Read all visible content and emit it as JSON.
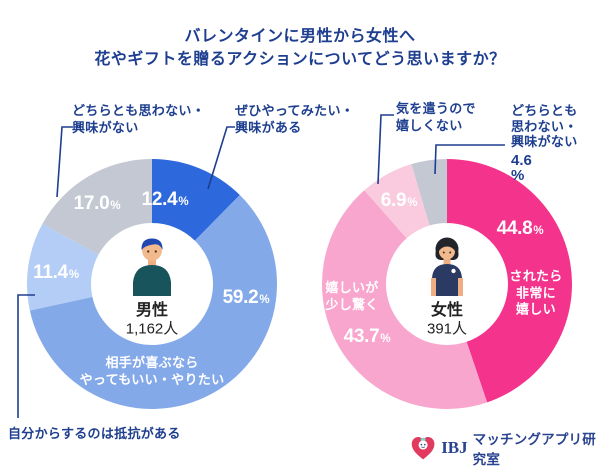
{
  "title": {
    "line1": "バレンタインに男性から女性へ",
    "line2": "花やギフトを贈るアクションについてどう思いますか？"
  },
  "percent_sign": "%",
  "chart_data": [
    {
      "type": "donut",
      "question": "バレンタインに男性から女性へ花やギフトを贈るアクションについてどう思いますか？",
      "group": "男性",
      "sample_size": "1,162人",
      "units": "%",
      "start_angle_deg": 0,
      "direction": "clockwise",
      "segments": [
        {
          "label": "ぜひやってみたい・興味がある",
          "value": 12.4,
          "pct": "12.4",
          "color": "#2D68DC"
        },
        {
          "label": "相手が喜ぶならやってもいい・やりたい",
          "value": 59.2,
          "pct": "59.2",
          "color": "#84A9E9"
        },
        {
          "label": "自分からするのは抵抗がある",
          "value": 11.4,
          "pct": "11.4",
          "color": "#B3CDF6"
        },
        {
          "label": "どちらとも思わない・興味がない",
          "value": 17.0,
          "pct": "17.0",
          "color": "#C3C8D3"
        }
      ]
    },
    {
      "type": "donut",
      "question": "バレンタインに男性から女性へ花やギフトを贈るアクションについてどう思いますか？",
      "group": "女性",
      "sample_size": "391人",
      "units": "%",
      "start_angle_deg": 0,
      "direction": "clockwise",
      "segments": [
        {
          "label": "されたら非常に嬉しい",
          "value": 44.8,
          "pct": "44.8",
          "color": "#F4338C"
        },
        {
          "label": "嬉しいが少し驚く",
          "value": 43.7,
          "pct": "43.7",
          "color": "#F8A6CD"
        },
        {
          "label": "気を遣うので嬉しくない",
          "value": 6.9,
          "pct": "6.9",
          "color": "#FACBDE"
        },
        {
          "label": "どちらとも思わない・興味がない",
          "value": 4.6,
          "pct": "4.6",
          "color": "#C3C8D3"
        }
      ]
    }
  ],
  "callouts": {
    "men_neutral_1": "どちらとも思わない・",
    "men_neutral_2": "興味がない",
    "men_eager_1": "ぜひやってみたい・",
    "men_eager_2": "興味がある",
    "men_resist": "自分からするのは抵抗がある",
    "men_main_1": "相手が喜ぶなら",
    "men_main_2": "やってもいい・やりたい",
    "women_care_1": "気を遣うので",
    "women_care_2": "嬉しくない",
    "women_neutral_1": "どちらとも",
    "women_neutral_2": "思わない・",
    "women_neutral_3": "興味がない",
    "women_very_1": "されたら",
    "women_very_2": "非常に",
    "women_very_3": "嬉しい",
    "women_surprise_1": "嬉しいが",
    "women_surprise_2": "少し驚く"
  },
  "footer": {
    "brand": "IBJ",
    "lab": "マッチングアプリ研究室"
  }
}
